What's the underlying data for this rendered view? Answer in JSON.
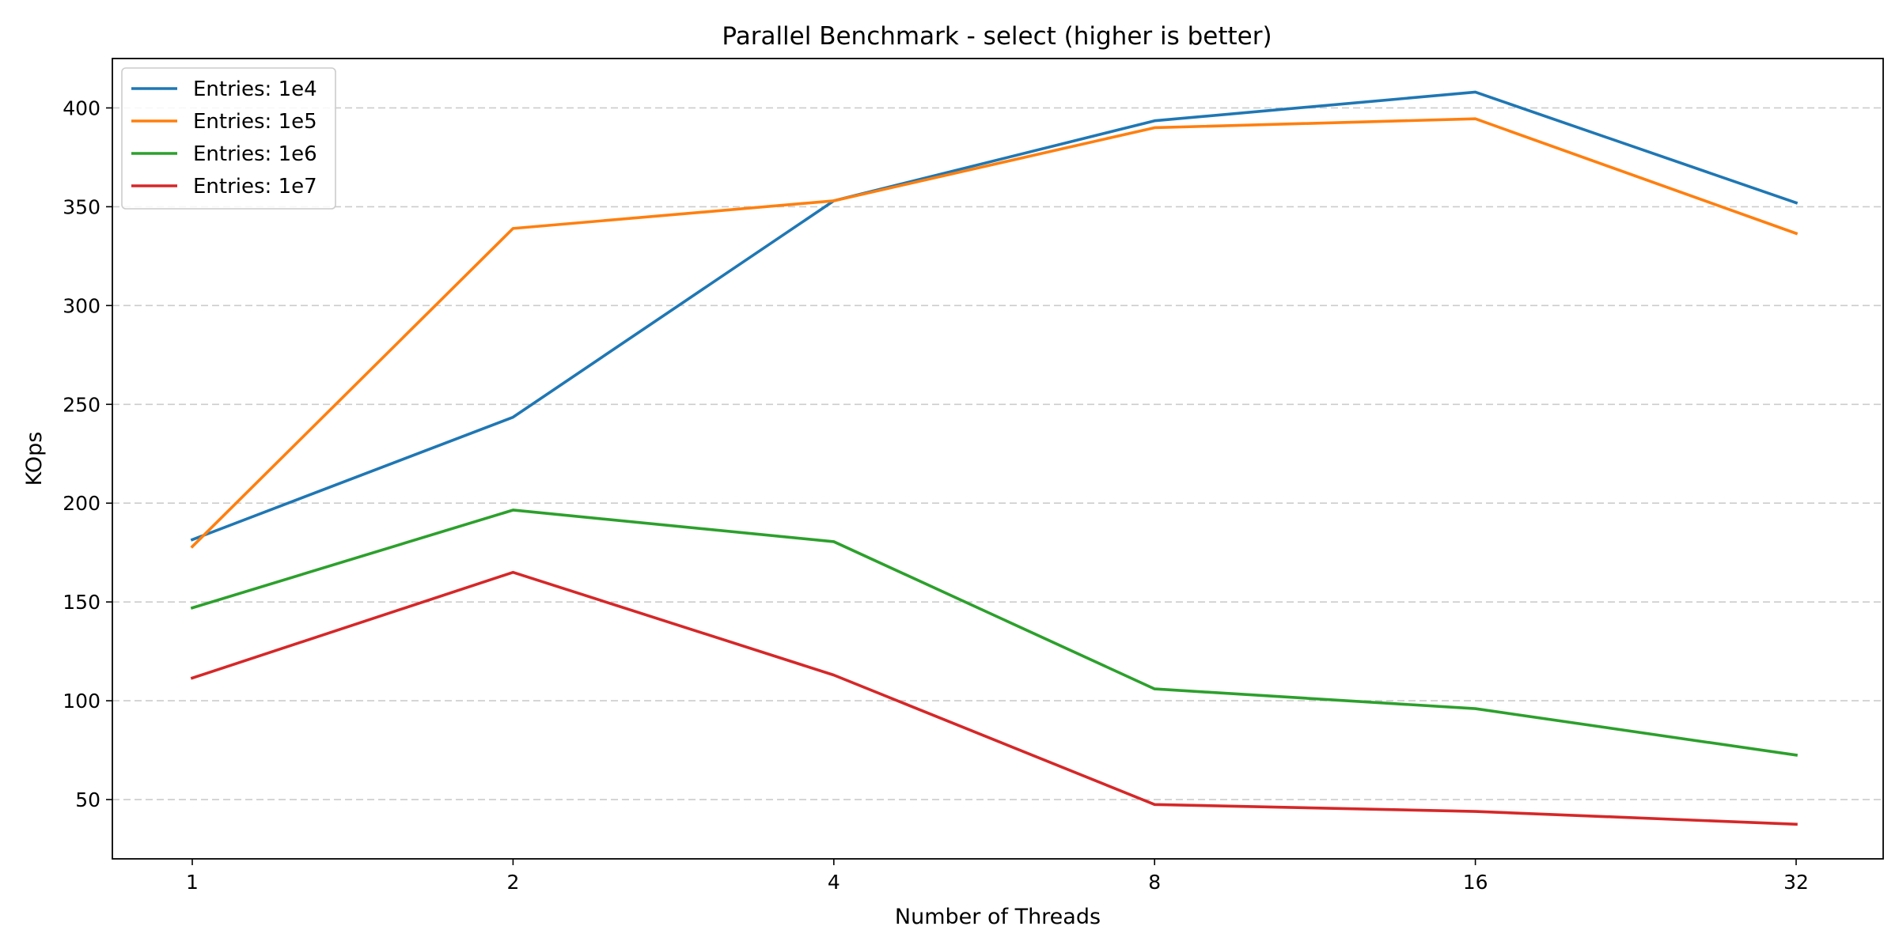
{
  "chart_data": {
    "type": "line",
    "title": "Parallel Benchmark - select (higher is better)",
    "xlabel": "Number of Threads",
    "ylabel": "KOps",
    "categories": [
      "1",
      "2",
      "4",
      "8",
      "16",
      "32"
    ],
    "ylim": [
      20,
      425
    ],
    "yticks": [
      50,
      100,
      150,
      200,
      250,
      300,
      350,
      400
    ],
    "grid": "horizontal dashed",
    "legend_position": "top-left",
    "series": [
      {
        "name": "Entries: 1e4",
        "color": "#1f77b4",
        "values": [
          181.5,
          243.5,
          353.0,
          393.5,
          408.0,
          352.0
        ]
      },
      {
        "name": "Entries: 1e5",
        "color": "#ff7f0e",
        "values": [
          178.0,
          339.0,
          353.0,
          390.0,
          394.5,
          336.5
        ]
      },
      {
        "name": "Entries: 1e6",
        "color": "#2ca02c",
        "values": [
          147.0,
          196.5,
          180.5,
          106.0,
          96.0,
          72.5
        ]
      },
      {
        "name": "Entries: 1e7",
        "color": "#d62728",
        "values": [
          111.5,
          165.0,
          113.0,
          47.5,
          44.0,
          37.5
        ]
      }
    ]
  }
}
